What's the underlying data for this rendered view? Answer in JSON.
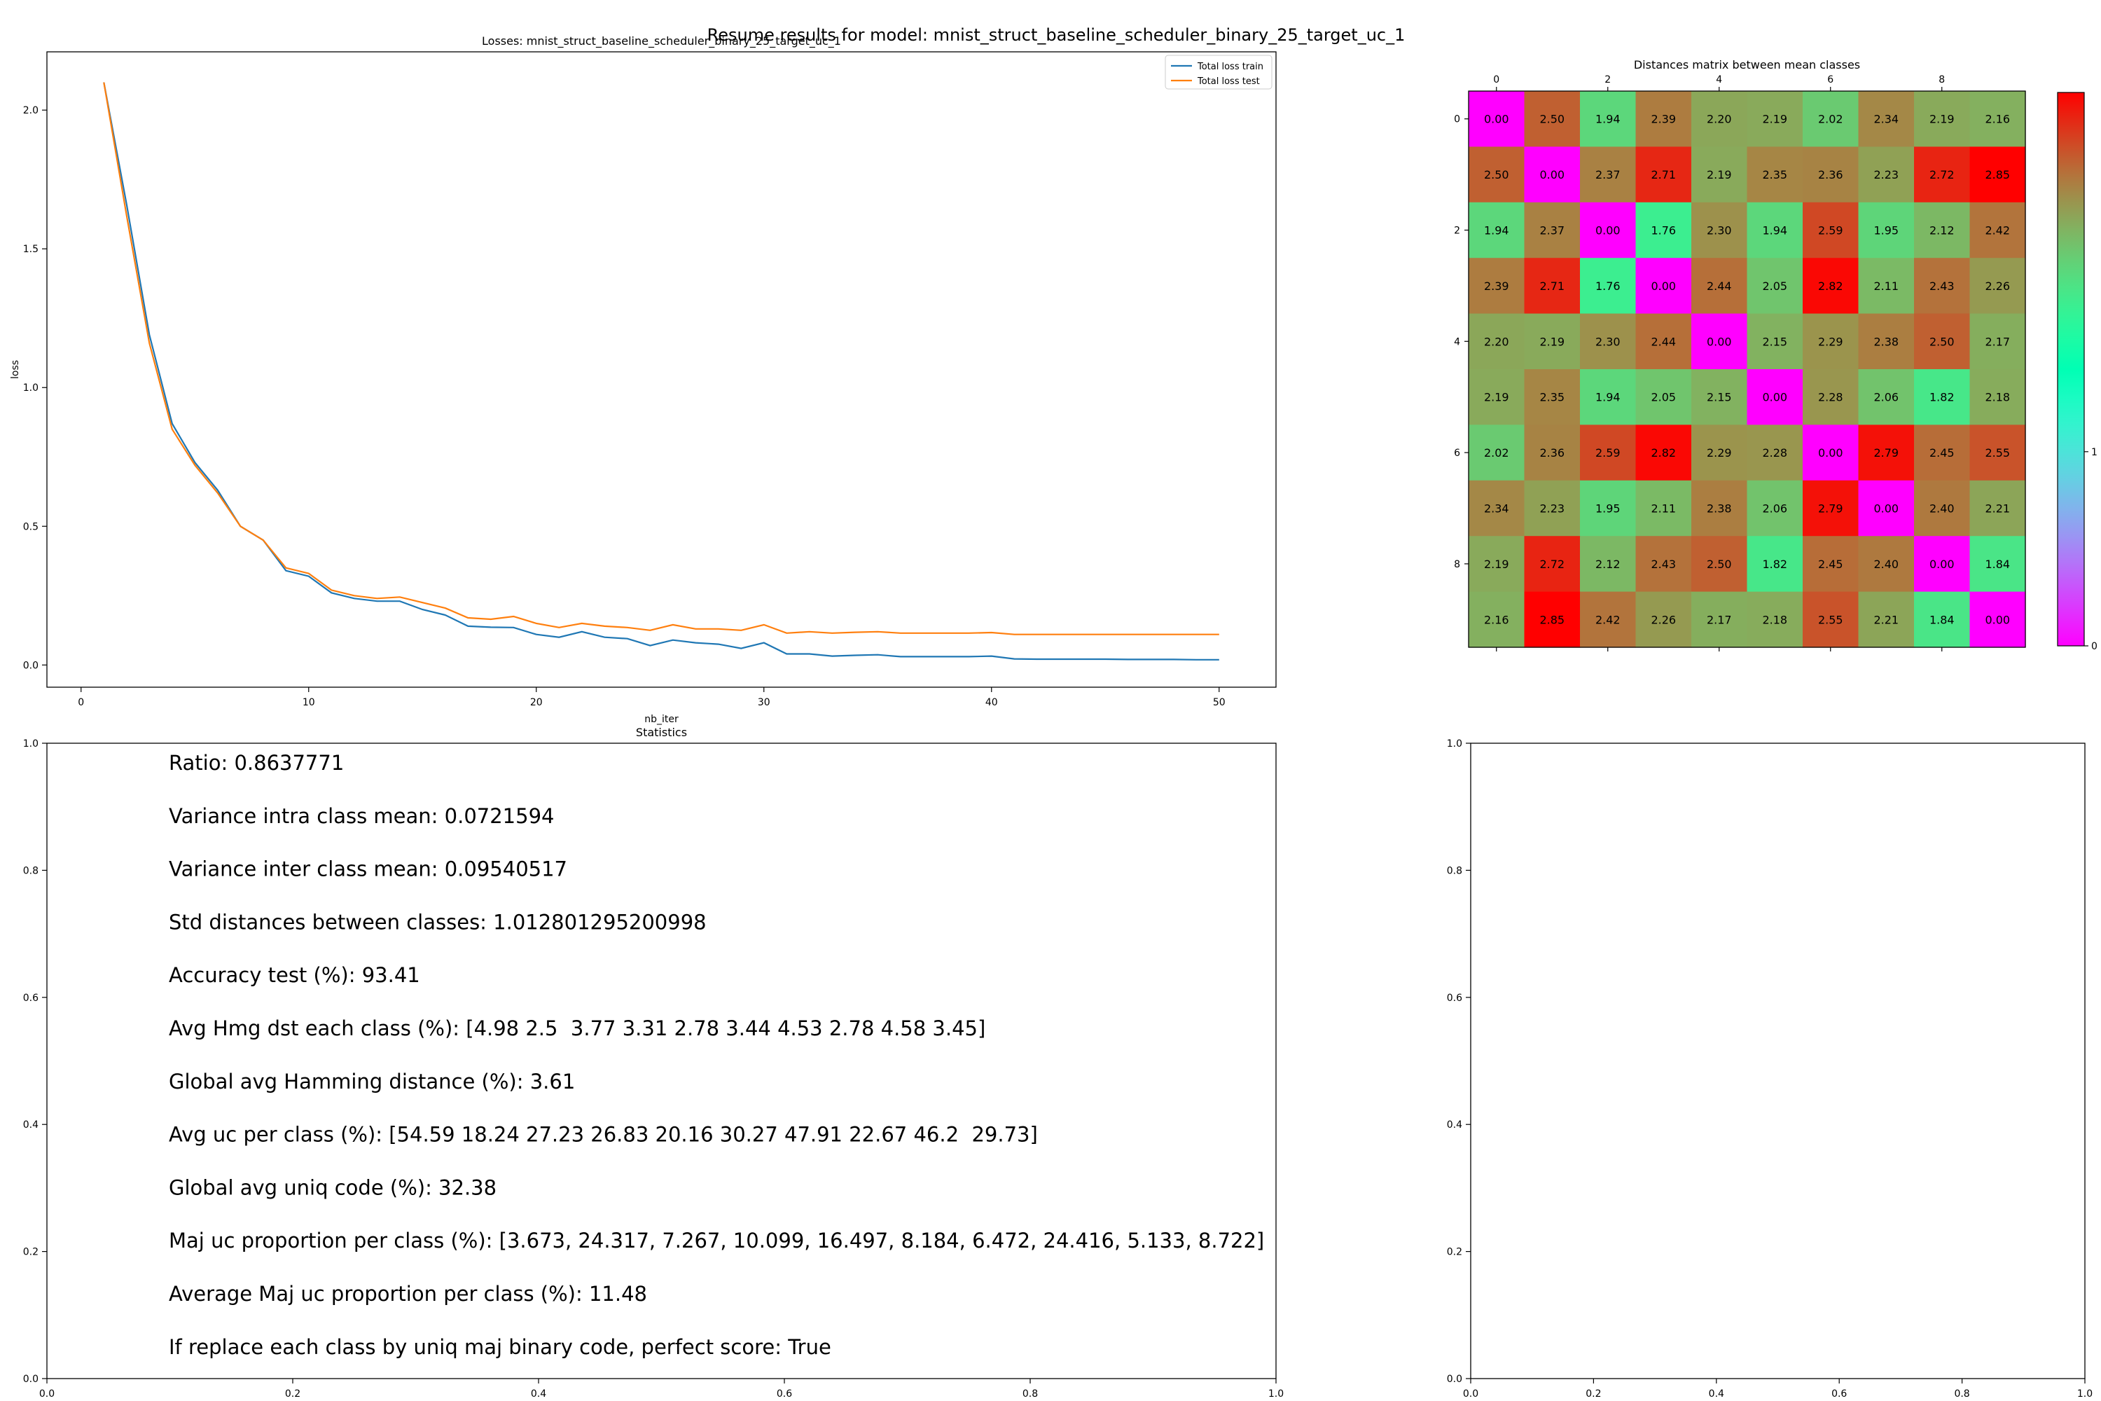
{
  "figure": {
    "suptitle": "Resume results for model: mnist_struct_baseline_scheduler_binary_25_target_uc_1"
  },
  "colors": {
    "train": "#1f77b4",
    "test": "#ff7f0e",
    "colormap": "rainbow"
  },
  "chart_data": [
    {
      "type": "line",
      "title": "Losses: mnist_struct_baseline_scheduler_binary_25_target_uc_1",
      "xlabel": "nb_iter",
      "ylabel": "loss",
      "xlim": [
        -1.5,
        52.5
      ],
      "ylim": [
        -0.08,
        2.21
      ],
      "xticks": [
        0,
        10,
        20,
        30,
        40,
        50
      ],
      "yticks": [
        0.0,
        0.5,
        1.0,
        1.5,
        2.0
      ],
      "legend_position": "upper right",
      "x": [
        1,
        2,
        3,
        4,
        5,
        6,
        7,
        8,
        9,
        10,
        11,
        12,
        13,
        14,
        15,
        16,
        17,
        18,
        19,
        20,
        21,
        22,
        23,
        24,
        25,
        26,
        27,
        28,
        29,
        30,
        31,
        32,
        33,
        34,
        35,
        36,
        37,
        38,
        39,
        40,
        41,
        42,
        43,
        44,
        45,
        46,
        47,
        48,
        49,
        50
      ],
      "series": [
        {
          "name": "Total loss train",
          "color": "#1f77b4",
          "values": [
            2.1,
            1.66,
            1.19,
            0.87,
            0.73,
            0.63,
            0.5,
            0.45,
            0.34,
            0.32,
            0.26,
            0.24,
            0.23,
            0.23,
            0.2,
            0.18,
            0.14,
            0.136,
            0.135,
            0.11,
            0.1,
            0.12,
            0.1,
            0.095,
            0.07,
            0.09,
            0.08,
            0.075,
            0.06,
            0.08,
            0.04,
            0.04,
            0.032,
            0.035,
            0.037,
            0.03,
            0.03,
            0.03,
            0.03,
            0.032,
            0.022,
            0.021,
            0.021,
            0.021,
            0.021,
            0.02,
            0.02,
            0.02,
            0.019,
            0.019
          ]
        },
        {
          "name": "Total loss test",
          "color": "#ff7f0e",
          "values": [
            2.1,
            1.62,
            1.16,
            0.85,
            0.72,
            0.62,
            0.5,
            0.45,
            0.35,
            0.33,
            0.27,
            0.25,
            0.24,
            0.245,
            0.225,
            0.205,
            0.17,
            0.165,
            0.175,
            0.15,
            0.135,
            0.15,
            0.14,
            0.135,
            0.125,
            0.145,
            0.13,
            0.13,
            0.125,
            0.145,
            0.115,
            0.12,
            0.115,
            0.118,
            0.12,
            0.115,
            0.115,
            0.115,
            0.115,
            0.117,
            0.11,
            0.11,
            0.11,
            0.11,
            0.11,
            0.11,
            0.11,
            0.11,
            0.11,
            0.11
          ]
        }
      ]
    },
    {
      "type": "heatmap",
      "title": "Distances matrix between mean classes",
      "xticks": [
        0,
        2,
        4,
        6,
        8
      ],
      "yticks": [
        0,
        2,
        4,
        6,
        8
      ],
      "colorbar_ticks": [
        0,
        1
      ],
      "vmin": 0,
      "vmax": 2.85,
      "matrix": [
        [
          0.0,
          2.5,
          1.94,
          2.39,
          2.2,
          2.19,
          2.02,
          2.34,
          2.19,
          2.16
        ],
        [
          2.5,
          0.0,
          2.37,
          2.71,
          2.19,
          2.35,
          2.36,
          2.23,
          2.72,
          2.85
        ],
        [
          1.94,
          2.37,
          0.0,
          1.76,
          2.3,
          1.94,
          2.59,
          1.95,
          2.12,
          2.42
        ],
        [
          2.39,
          2.71,
          1.76,
          0.0,
          2.44,
          2.05,
          2.82,
          2.11,
          2.43,
          2.26
        ],
        [
          2.2,
          2.19,
          2.3,
          2.44,
          0.0,
          2.15,
          2.29,
          2.38,
          2.5,
          2.17
        ],
        [
          2.19,
          2.35,
          1.94,
          2.05,
          2.15,
          0.0,
          2.28,
          2.06,
          1.82,
          2.18
        ],
        [
          2.02,
          2.36,
          2.59,
          2.82,
          2.29,
          2.28,
          0.0,
          2.79,
          2.45,
          2.55
        ],
        [
          2.34,
          2.23,
          1.95,
          2.11,
          2.38,
          2.06,
          2.79,
          0.0,
          2.4,
          2.21
        ],
        [
          2.19,
          2.72,
          2.12,
          2.43,
          2.5,
          1.82,
          2.45,
          2.4,
          0.0,
          1.84
        ],
        [
          2.16,
          2.85,
          2.42,
          2.26,
          2.17,
          2.18,
          2.55,
          2.21,
          1.84,
          0.0
        ]
      ]
    },
    {
      "type": "table",
      "title": "Statistics",
      "xlim": [
        0,
        1
      ],
      "ylim": [
        0,
        1
      ],
      "xticks": [
        "0.0",
        "0.2",
        "0.4",
        "0.6",
        "0.8",
        "1.0"
      ],
      "yticks": [
        "0.0",
        "0.2",
        "0.4",
        "0.6",
        "0.8",
        "1.0"
      ],
      "lines": [
        "Ratio: 0.8637771",
        "Variance intra class mean: 0.0721594",
        "Variance inter class mean: 0.09540517",
        "Std distances between classes: 1.012801295200998",
        "Accuracy test (%): 93.41",
        "Avg Hmg dst each class (%): [4.98 2.5  3.77 3.31 2.78 3.44 4.53 2.78 4.58 3.45]",
        "Global avg Hamming distance (%): 3.61",
        "Avg uc per class (%): [54.59 18.24 27.23 26.83 20.16 30.27 47.91 22.67 46.2  29.73]",
        "Global avg uniq code (%): 32.38",
        "Maj uc proportion per class (%): [3.673, 24.317, 7.267, 10.099, 16.497, 8.184, 6.472, 24.416, 5.133, 8.722]",
        "Average Maj uc proportion per class (%): 11.48",
        "If replace each class by uniq maj binary code, perfect score: True"
      ]
    },
    {
      "type": "table",
      "title": "",
      "xlim": [
        0,
        1
      ],
      "ylim": [
        0,
        1
      ],
      "xticks": [
        "0.0",
        "0.2",
        "0.4",
        "0.6",
        "0.8",
        "1.0"
      ],
      "yticks": [
        "0.0",
        "0.2",
        "0.4",
        "0.6",
        "0.8",
        "1.0"
      ]
    }
  ]
}
